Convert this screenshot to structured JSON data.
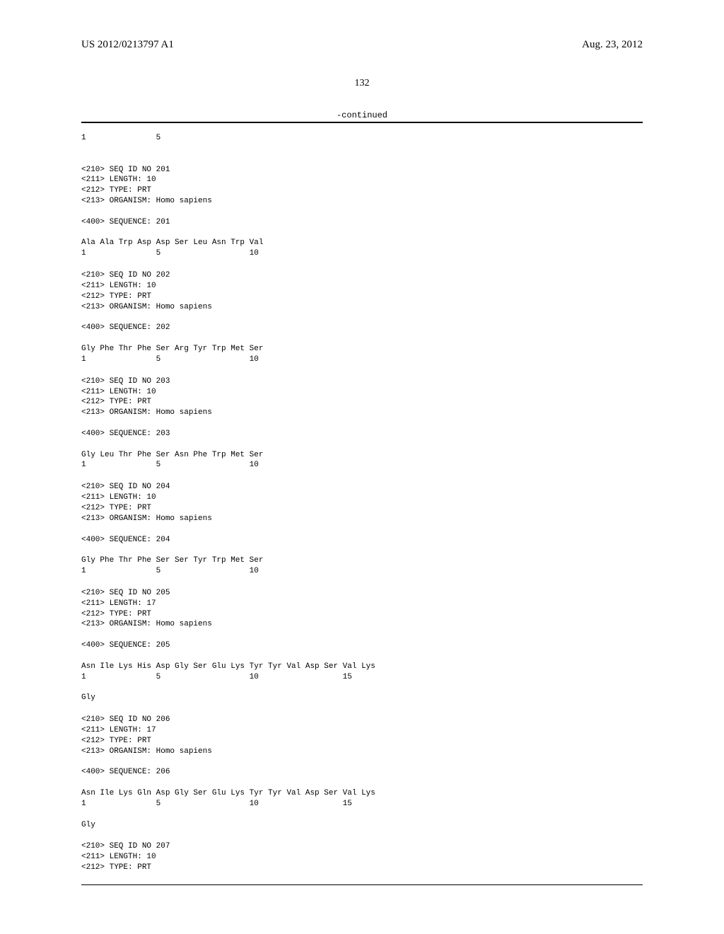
{
  "header": {
    "publication_number": "US 2012/0213797 A1",
    "publication_date": "Aug. 23, 2012"
  },
  "page_number": "132",
  "continued_label": "-continued",
  "entries": [
    {
      "pre_ruler": "1               5",
      "meta": [
        "<210> SEQ ID NO 201",
        "<211> LENGTH: 10",
        "<212> TYPE: PRT",
        "<213> ORGANISM: Homo sapiens"
      ],
      "seq_label": "<400> SEQUENCE: 201",
      "sequence": "Ala Ala Trp Asp Asp Ser Leu Asn Trp Val",
      "ruler": "1               5                   10"
    },
    {
      "meta": [
        "<210> SEQ ID NO 202",
        "<211> LENGTH: 10",
        "<212> TYPE: PRT",
        "<213> ORGANISM: Homo sapiens"
      ],
      "seq_label": "<400> SEQUENCE: 202",
      "sequence": "Gly Phe Thr Phe Ser Arg Tyr Trp Met Ser",
      "ruler": "1               5                   10"
    },
    {
      "meta": [
        "<210> SEQ ID NO 203",
        "<211> LENGTH: 10",
        "<212> TYPE: PRT",
        "<213> ORGANISM: Homo sapiens"
      ],
      "seq_label": "<400> SEQUENCE: 203",
      "sequence": "Gly Leu Thr Phe Ser Asn Phe Trp Met Ser",
      "ruler": "1               5                   10"
    },
    {
      "meta": [
        "<210> SEQ ID NO 204",
        "<211> LENGTH: 10",
        "<212> TYPE: PRT",
        "<213> ORGANISM: Homo sapiens"
      ],
      "seq_label": "<400> SEQUENCE: 204",
      "sequence": "Gly Phe Thr Phe Ser Ser Tyr Trp Met Ser",
      "ruler": "1               5                   10"
    },
    {
      "meta": [
        "<210> SEQ ID NO 205",
        "<211> LENGTH: 17",
        "<212> TYPE: PRT",
        "<213> ORGANISM: Homo sapiens"
      ],
      "seq_label": "<400> SEQUENCE: 205",
      "sequence": "Asn Ile Lys His Asp Gly Ser Glu Lys Tyr Tyr Val Asp Ser Val Lys",
      "ruler": "1               5                   10                  15",
      "sequence2": "Gly"
    },
    {
      "meta": [
        "<210> SEQ ID NO 206",
        "<211> LENGTH: 17",
        "<212> TYPE: PRT",
        "<213> ORGANISM: Homo sapiens"
      ],
      "seq_label": "<400> SEQUENCE: 206",
      "sequence": "Asn Ile Lys Gln Asp Gly Ser Glu Lys Tyr Tyr Val Asp Ser Val Lys",
      "ruler": "1               5                   10                  15",
      "sequence2": "Gly"
    },
    {
      "meta": [
        "<210> SEQ ID NO 207",
        "<211> LENGTH: 10",
        "<212> TYPE: PRT"
      ]
    }
  ]
}
